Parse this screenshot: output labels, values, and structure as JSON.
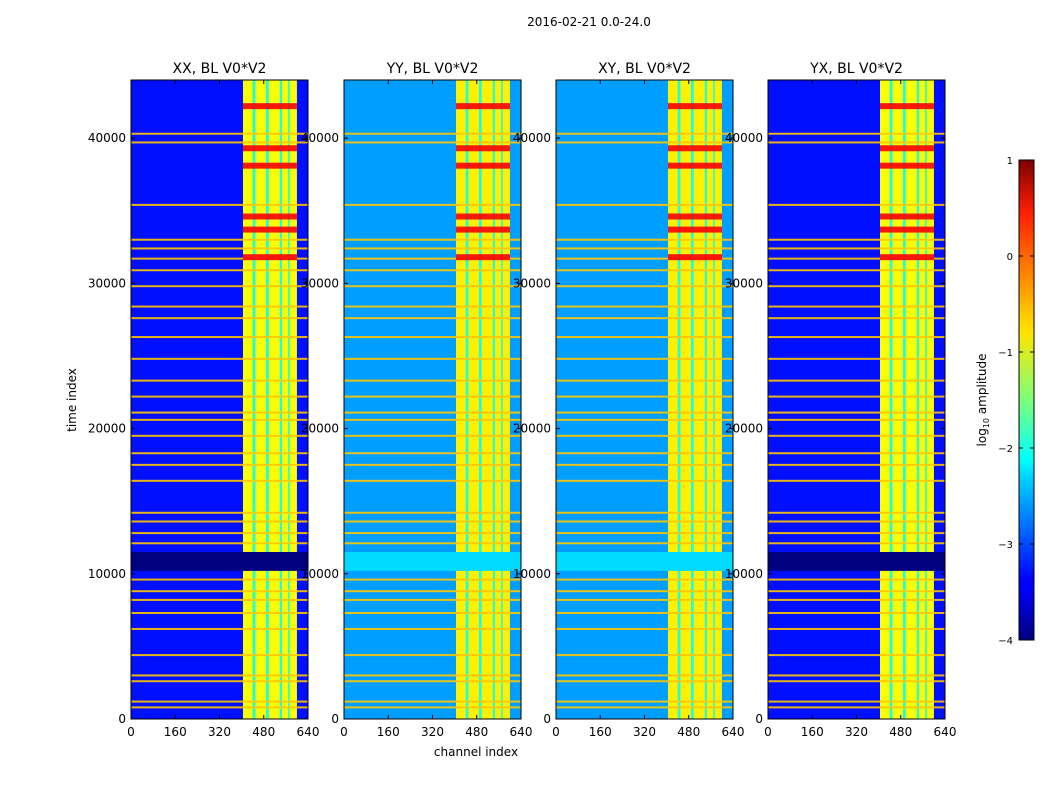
{
  "chart_data": {
    "type": "heatmap",
    "suptitle": "2016-02-21 0.0-24.0",
    "xlabel": "channel index",
    "ylabel": "time index",
    "xlim": [
      0,
      640
    ],
    "ylim": [
      0,
      44000
    ],
    "xticks": [
      0,
      160,
      320,
      480,
      640
    ],
    "yticks": [
      0,
      10000,
      20000,
      30000,
      40000
    ],
    "colormap": "jet",
    "colorbar": {
      "label": "log",
      "label_sub": "10",
      "label_rest": " amplitude",
      "range": [
        -4,
        1
      ],
      "ticks": [
        {
          "value": -4,
          "text": "−4"
        },
        {
          "value": -3,
          "text": "−3"
        },
        {
          "value": -2,
          "text": "−2"
        },
        {
          "value": -1,
          "text": "−1"
        },
        {
          "value": 0,
          "text": "0"
        },
        {
          "value": 1,
          "text": "1"
        }
      ]
    },
    "panels": [
      {
        "title": "XX, BL V0*V2",
        "background_level": -3.3,
        "band_level": -0.9,
        "flag_level": -4.0,
        "ytick_labels_hidden": false
      },
      {
        "title": "YY, BL V0*V2",
        "background_level": -2.6,
        "band_level": -0.8,
        "flag_level": -2.3,
        "ytick_labels_hidden": false
      },
      {
        "title": "XY, BL V0*V2",
        "background_level": -2.6,
        "band_level": -0.8,
        "flag_level": -2.3,
        "ytick_labels_hidden": false
      },
      {
        "title": "YX, BL V0*V2",
        "background_level": -3.3,
        "band_level": -0.9,
        "flag_level": -4.0,
        "ytick_labels_hidden": false
      }
    ],
    "bright_channel_band": [
      405,
      600
    ],
    "flagged_time_range": [
      10200,
      11500
    ],
    "rfi_time_rows": [
      800,
      1200,
      2600,
      3000,
      4400,
      6200,
      7300,
      8200,
      8800,
      9600,
      12100,
      12800,
      13600,
      14200,
      16400,
      17500,
      18300,
      19500,
      20600,
      21100,
      22200,
      23300,
      24800,
      26300,
      27600,
      28400,
      29800,
      30900,
      31700,
      32400,
      33000,
      35400,
      39700,
      40300
    ],
    "hot_time_rows": [
      31800,
      33700,
      34600,
      38100,
      39300,
      42200
    ]
  }
}
